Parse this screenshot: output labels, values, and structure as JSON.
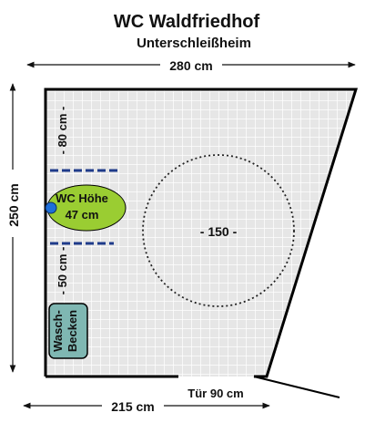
{
  "title": "WC Waldfriedhof",
  "subtitle": "Unterschleißheim",
  "dimensions": {
    "top_width": "280 cm",
    "left_height": "250 cm",
    "bottom_width": "215 cm",
    "door": "Tür 90 cm",
    "clearance_above": "- 80 cm -",
    "clearance_below": "- 50 cm -",
    "turning_circle": "- 150 -"
  },
  "fixtures": {
    "wc_line1": "WC Höhe",
    "wc_line2": "47 cm",
    "basin_line1": "Wasch-",
    "basin_line2": "Becken"
  },
  "colors": {
    "grid_fill": "#e6e6e6",
    "grid_line": "#ffffff",
    "wall": "#000000",
    "dashed": "#1f3b8a",
    "wc": "#9acd32",
    "wc_dot": "#1e6fd9",
    "basin": "#7fb7b2"
  }
}
